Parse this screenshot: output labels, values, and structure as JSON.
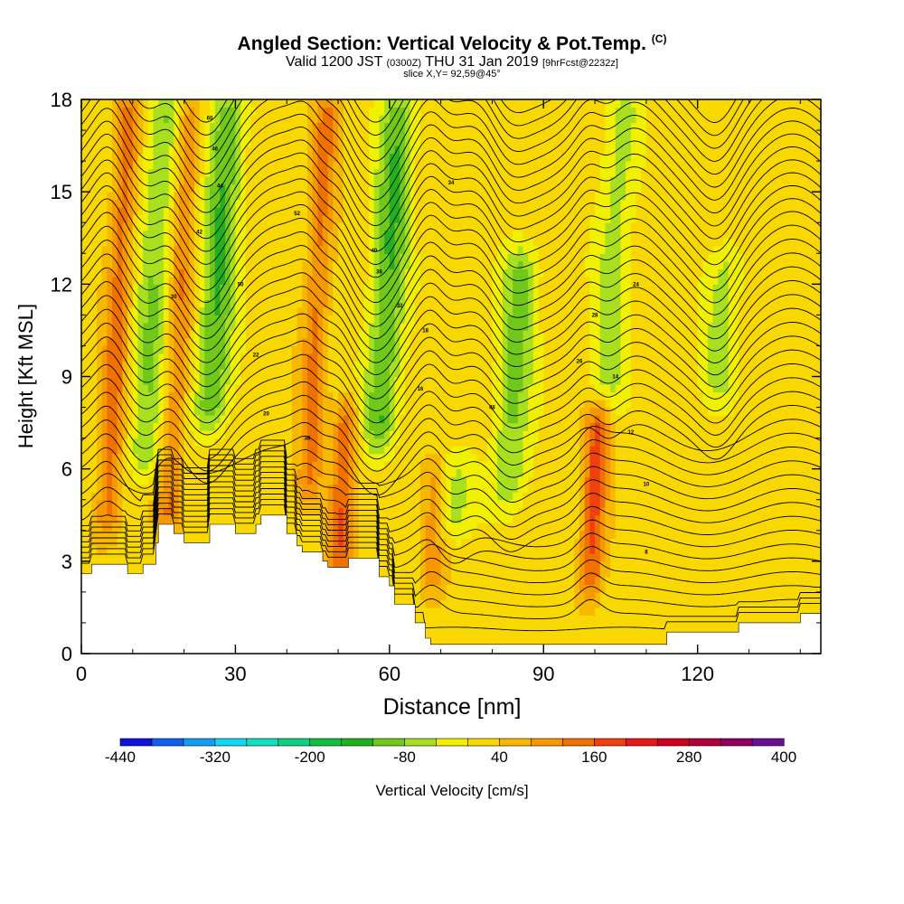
{
  "header": {
    "title": "Angled Section: Vertical Velocity & Pot.Temp.",
    "title_tag": "(C)",
    "valid_main": "Valid 1200 JST",
    "valid_utc": "(0300Z)",
    "valid_date": "THU 31 Jan 2019",
    "forecast": "[9hrFcst@2232z]",
    "slice": "slice X,Y= 92,59@45°"
  },
  "chart_data": {
    "type": "heatmap",
    "xlabel": "Distance [nm]",
    "ylabel": "Height [Kft MSL]",
    "xlim": [
      0,
      144
    ],
    "ylim": [
      0,
      18
    ],
    "x_ticks": [
      0,
      30,
      60,
      90,
      120
    ],
    "y_ticks": [
      0,
      3,
      6,
      9,
      12,
      15,
      18
    ],
    "colorbar": {
      "label": "Vertical Velocity [cm/s]",
      "tick_labels": [
        "-440",
        "-320",
        "-200",
        "-80",
        "40",
        "160",
        "280",
        "400"
      ],
      "colors": [
        "#1010e0",
        "#1060f0",
        "#10a0f0",
        "#10d8f0",
        "#10e0c0",
        "#10d080",
        "#10c040",
        "#20b020",
        "#70c818",
        "#a8e020",
        "#f0f000",
        "#f8d800",
        "#f8b800",
        "#f89800",
        "#f07000",
        "#f04010",
        "#e81818",
        "#d00020",
        "#b00040",
        "#900060",
        "#6a1090"
      ]
    },
    "field": {
      "background_range_cm_s": [
        0,
        40
      ],
      "updraft_columns": [
        {
          "x_center": 25,
          "y_range": [
            7.5,
            18
          ],
          "peak_cm_s": -140
        },
        {
          "x_center": 58,
          "y_range": [
            7,
            18
          ],
          "peak_cm_s": -140
        },
        {
          "x_center": 83,
          "y_range": [
            5,
            13
          ],
          "peak_cm_s": -110
        },
        {
          "x_center": 102,
          "y_range": [
            8,
            18
          ],
          "peak_cm_s": -80
        },
        {
          "x_center": 124,
          "y_range": [
            8.5,
            13
          ],
          "peak_cm_s": -80
        },
        {
          "x_center": 12,
          "y_range": [
            6,
            18
          ],
          "peak_cm_s": -100
        },
        {
          "x_center": 72,
          "y_range": [
            4,
            6
          ],
          "peak_cm_s": -80
        }
      ],
      "downdraft_columns": [
        {
          "x_center": 5,
          "y_range": [
            4,
            18
          ],
          "peak_cm_s": 120
        },
        {
          "x_center": 17,
          "y_range": [
            4,
            18
          ],
          "peak_cm_s": 100
        },
        {
          "x_center": 44,
          "y_range": [
            5,
            18
          ],
          "peak_cm_s": 110
        },
        {
          "x_center": 50,
          "y_range": [
            2,
            8
          ],
          "peak_cm_s": 130
        },
        {
          "x_center": 99,
          "y_range": [
            2,
            8
          ],
          "peak_cm_s": 150
        },
        {
          "x_center": 68,
          "y_range": [
            2,
            6
          ],
          "peak_cm_s": 80
        }
      ]
    },
    "terrain_kft": [
      [
        0,
        2.6
      ],
      [
        2,
        2.9
      ],
      [
        8,
        2.9
      ],
      [
        9,
        2.6
      ],
      [
        10,
        2.6
      ],
      [
        12,
        2.9
      ],
      [
        14,
        2.9
      ],
      [
        14.5,
        3.6
      ],
      [
        15,
        3.6
      ],
      [
        15,
        4.2
      ],
      [
        18,
        4.2
      ],
      [
        18,
        3.9
      ],
      [
        19,
        3.9
      ],
      [
        20,
        3.6
      ],
      [
        25,
        3.6
      ],
      [
        25,
        4.2
      ],
      [
        30,
        4.2
      ],
      [
        30,
        3.9
      ],
      [
        32,
        3.9
      ],
      [
        33,
        3.9
      ],
      [
        34,
        4.2
      ],
      [
        35,
        4.5
      ],
      [
        39,
        4.5
      ],
      [
        40,
        3.9
      ],
      [
        42,
        3.5
      ],
      [
        43,
        3.3
      ],
      [
        46,
        3.3
      ],
      [
        47,
        3.0
      ],
      [
        48,
        2.8
      ],
      [
        51,
        2.8
      ],
      [
        52,
        3.1
      ],
      [
        55,
        3.1
      ],
      [
        56,
        3.1
      ],
      [
        57,
        3.1
      ],
      [
        58,
        2.5
      ],
      [
        59,
        2.5
      ],
      [
        60,
        2.2
      ],
      [
        61,
        1.6
      ],
      [
        63,
        1.6
      ],
      [
        65,
        1.0
      ],
      [
        67,
        0.5
      ],
      [
        68,
        0.3
      ],
      [
        113,
        0.3
      ],
      [
        114,
        0.7
      ],
      [
        127,
        0.7
      ],
      [
        128,
        1.0
      ],
      [
        139,
        1.0
      ],
      [
        140,
        1.3
      ],
      [
        144,
        1.3
      ]
    ],
    "contour_labels": [
      "60",
      "34",
      "50",
      "52",
      "18",
      "48",
      "46",
      "44",
      "42",
      "40",
      "38",
      "36",
      "32",
      "30",
      "28",
      "26",
      "24",
      "22",
      "20",
      "16",
      "14",
      "12",
      "10",
      "8"
    ]
  }
}
